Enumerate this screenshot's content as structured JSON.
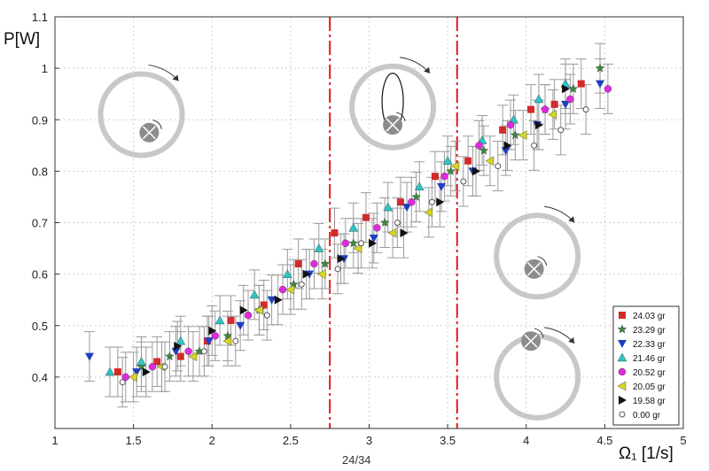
{
  "page_number": "24/34",
  "chart_data": {
    "type": "scatter",
    "title": "",
    "xlabel": "Ω₁ [1/s]",
    "ylabel": "P[W]",
    "xlim": [
      1,
      5
    ],
    "ylim": [
      0.3,
      1.1
    ],
    "x_ticks": [
      "1",
      "1.5",
      "2",
      "2.5",
      "3",
      "3.5",
      "4",
      "4.5",
      "5"
    ],
    "y_ticks": [
      "0.4",
      "0.5",
      "0.6",
      "0.7",
      "0.8",
      "0.9",
      "1",
      "1.1"
    ],
    "grid": true,
    "legend_position": "bottom-right",
    "regime_boundaries_x": [
      2.75,
      3.56
    ],
    "colors": {
      "boundary": "#dd1c1c",
      "errorbar": "#9a9a9a",
      "ring": "#c8c8c8",
      "ball": "#8c8c8c"
    },
    "series": [
      {
        "name": "24.03 gr",
        "marker": "square",
        "color": "#d42a2a",
        "x": [
          1.4,
          1.65,
          1.8,
          1.97,
          2.12,
          2.33,
          2.55,
          2.78,
          2.98,
          3.2,
          3.42,
          3.63,
          3.85,
          4.03,
          4.18,
          4.35
        ],
        "y": [
          0.41,
          0.43,
          0.44,
          0.47,
          0.51,
          0.54,
          0.62,
          0.68,
          0.71,
          0.74,
          0.79,
          0.82,
          0.88,
          0.92,
          0.93,
          0.97
        ]
      },
      {
        "name": "23.29 gr",
        "marker": "star",
        "color": "#3b8a3b",
        "x": [
          1.55,
          1.73,
          1.92,
          2.1,
          2.3,
          2.52,
          2.72,
          2.9,
          3.1,
          3.3,
          3.52,
          3.73,
          3.93,
          4.12,
          4.3,
          4.47
        ],
        "y": [
          0.42,
          0.44,
          0.45,
          0.48,
          0.53,
          0.58,
          0.62,
          0.66,
          0.7,
          0.75,
          0.8,
          0.84,
          0.87,
          0.92,
          0.96,
          1.0
        ]
      },
      {
        "name": "22.33 gr",
        "marker": "triangle-down",
        "color": "#1f3fbf",
        "x": [
          1.22,
          1.52,
          1.77,
          1.98,
          2.18,
          2.38,
          2.62,
          2.84,
          3.03,
          3.24,
          3.46,
          3.66,
          3.87,
          4.07,
          4.25,
          4.47
        ],
        "y": [
          0.44,
          0.41,
          0.45,
          0.47,
          0.5,
          0.55,
          0.6,
          0.63,
          0.67,
          0.73,
          0.77,
          0.8,
          0.84,
          0.89,
          0.93,
          0.97
        ]
      },
      {
        "name": "21.46 gr",
        "marker": "triangle-up",
        "color": "#2ec4c4",
        "x": [
          1.35,
          1.55,
          1.8,
          2.05,
          2.27,
          2.48,
          2.68,
          2.9,
          3.12,
          3.32,
          3.5,
          3.72,
          3.92,
          4.08,
          4.25
        ],
        "y": [
          0.41,
          0.43,
          0.47,
          0.51,
          0.56,
          0.6,
          0.65,
          0.69,
          0.73,
          0.77,
          0.82,
          0.86,
          0.9,
          0.94,
          0.97
        ]
      },
      {
        "name": "20.52 gr",
        "marker": "circle",
        "color": "#e02ae0",
        "x": [
          1.45,
          1.62,
          1.85,
          2.02,
          2.23,
          2.45,
          2.65,
          2.85,
          3.05,
          3.27,
          3.48,
          3.7,
          3.9,
          4.12,
          4.28,
          4.52
        ],
        "y": [
          0.4,
          0.42,
          0.45,
          0.48,
          0.52,
          0.57,
          0.62,
          0.66,
          0.69,
          0.74,
          0.79,
          0.85,
          0.89,
          0.92,
          0.94,
          0.96
        ]
      },
      {
        "name": "20.05 gr",
        "marker": "triangle-left",
        "color": "#d6d620",
        "x": [
          1.5,
          1.68,
          1.88,
          2.1,
          2.3,
          2.5,
          2.7,
          2.93,
          3.15,
          3.38,
          3.55,
          3.77,
          3.98,
          4.17
        ],
        "y": [
          0.4,
          0.42,
          0.44,
          0.47,
          0.53,
          0.57,
          0.6,
          0.65,
          0.68,
          0.72,
          0.81,
          0.82,
          0.87,
          0.91
        ]
      },
      {
        "name": "19.58 gr",
        "marker": "triangle-right",
        "color": "#111111",
        "x": [
          1.58,
          1.78,
          2.0,
          2.2,
          2.42,
          2.6,
          2.82,
          3.02,
          3.22,
          3.45,
          3.68,
          3.88,
          4.08,
          4.25
        ],
        "y": [
          0.41,
          0.46,
          0.49,
          0.53,
          0.55,
          0.6,
          0.63,
          0.66,
          0.68,
          0.74,
          0.8,
          0.85,
          0.89,
          0.96
        ]
      },
      {
        "name": "0.00 gr",
        "marker": "open-circle",
        "color": "#555555",
        "x": [
          1.43,
          1.7,
          1.95,
          2.15,
          2.35,
          2.57,
          2.8,
          2.95,
          3.18,
          3.4,
          3.6,
          3.82,
          4.05,
          4.22,
          4.38
        ],
        "y": [
          0.39,
          0.42,
          0.45,
          0.47,
          0.52,
          0.58,
          0.61,
          0.66,
          0.7,
          0.74,
          0.78,
          0.81,
          0.85,
          0.88,
          0.92
        ]
      }
    ],
    "insets": [
      {
        "name": "ring-ball-inside-bottom",
        "x": 1.55,
        "y": 0.91,
        "ball_dx": 0.05,
        "ball_dy": -0.035,
        "loop": false
      },
      {
        "name": "ring-ball-looping",
        "x": 3.15,
        "y": 0.925,
        "ball_dx": 0.0,
        "ball_dy": -0.035,
        "loop": true
      },
      {
        "name": "ring-ball-center",
        "x": 4.07,
        "y": 0.635,
        "ball_dx": -0.02,
        "ball_dy": -0.025,
        "loop": false
      },
      {
        "name": "ring-ball-on-rim",
        "x": 4.07,
        "y": 0.4,
        "ball_dx": -0.04,
        "ball_dy": 0.07,
        "loop": false
      }
    ]
  }
}
